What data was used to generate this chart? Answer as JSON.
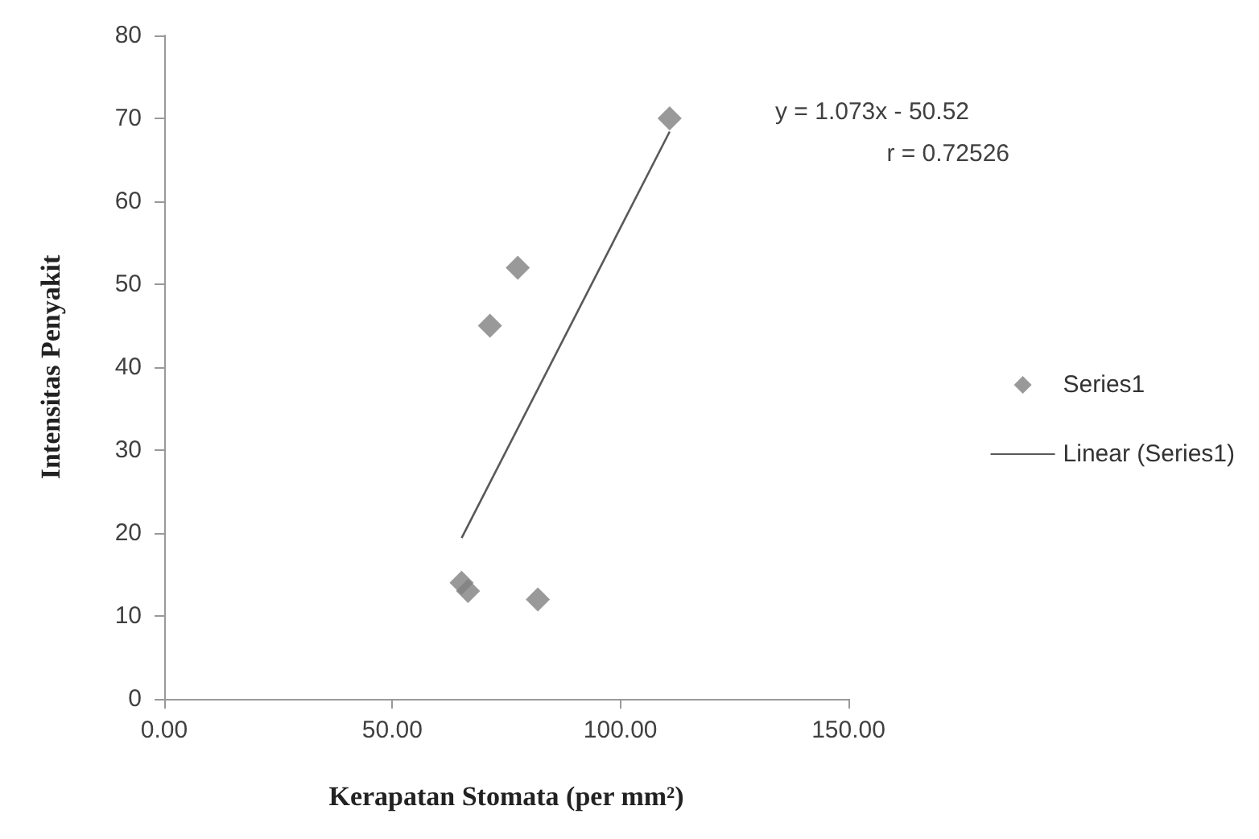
{
  "chart_data": {
    "type": "scatter",
    "xlabel": "Kerapatan Stomata (per mm²)",
    "ylabel": "Intensitas Penyakit",
    "series": [
      {
        "name": "Series1",
        "type": "scatter",
        "color": "#808080",
        "marker": "diamond",
        "x": [
          110.8,
          77.5,
          71.4,
          65.2,
          66.6,
          81.9
        ],
        "values": [
          70,
          52,
          45,
          14,
          13,
          12
        ]
      },
      {
        "name": "Linear (Series1)",
        "type": "line",
        "color": "#595959",
        "marker": "none",
        "line_style": "solid",
        "x": [
          65.2,
          110.8
        ],
        "values": [
          19.4,
          68.4
        ]
      }
    ],
    "annotations": [
      "y = 1.073x - 50.52",
      "r = 0.72526"
    ],
    "xlim": [
      0,
      150
    ],
    "xticks": [
      {
        "value": 0,
        "label": "0.00"
      },
      {
        "value": 50,
        "label": "50.00"
      },
      {
        "value": 100,
        "label": "100.00"
      },
      {
        "value": 150,
        "label": "150.00"
      }
    ],
    "ylim": [
      0,
      80
    ],
    "yticks": [
      0,
      10,
      20,
      30,
      40,
      50,
      60,
      70,
      80
    ],
    "grid": false,
    "legend": "right"
  }
}
